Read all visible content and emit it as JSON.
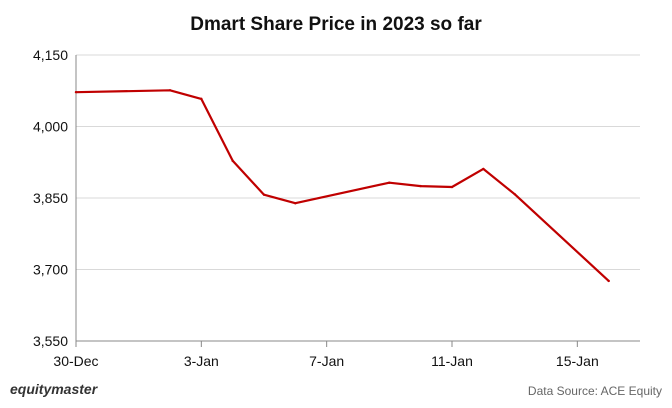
{
  "brand": "equitymaster",
  "source": "Data Source: ACE Equity",
  "colors": {
    "line": "#c00000",
    "grid": "#d9d9d9",
    "axis": "#888888",
    "text": "#111111"
  },
  "chart_data": {
    "type": "line",
    "title": "Dmart Share Price in 2023 so far",
    "xlabel": "",
    "ylabel": "",
    "x": [
      "30-Dec",
      "2-Jan",
      "3-Jan",
      "4-Jan",
      "5-Jan",
      "6-Jan",
      "9-Jan",
      "10-Jan",
      "11-Jan",
      "12-Jan",
      "13-Jan",
      "16-Jan"
    ],
    "x_positions": [
      0,
      3,
      4,
      5,
      6,
      7,
      10,
      11,
      12,
      13,
      14,
      17
    ],
    "x_ticks": [
      {
        "label": "30-Dec",
        "pos": 0
      },
      {
        "label": "3-Jan",
        "pos": 4
      },
      {
        "label": "7-Jan",
        "pos": 8
      },
      {
        "label": "11-Jan",
        "pos": 12
      },
      {
        "label": "15-Jan",
        "pos": 16
      }
    ],
    "xlim": [
      0,
      18
    ],
    "series": [
      {
        "values": [
          4072,
          4076,
          4058,
          3928,
          3857,
          3839,
          3882,
          3875,
          3873,
          3911,
          3858,
          3676
        ]
      }
    ],
    "yticks": [
      3550,
      3700,
      3850,
      4000,
      4150
    ],
    "ytick_labels": [
      "3,550",
      "3,700",
      "3,850",
      "4,000",
      "4,150"
    ],
    "ylim": [
      3550,
      4150
    ],
    "grid": "horizontal",
    "legend": "none"
  }
}
